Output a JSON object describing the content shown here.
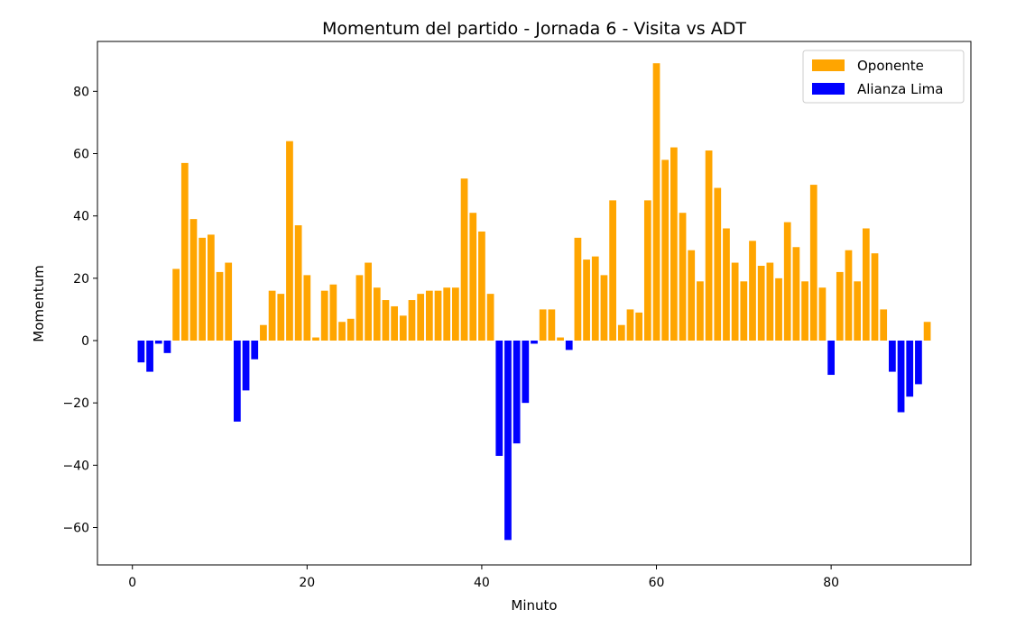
{
  "chart_data": {
    "type": "bar",
    "title": "Momentum del partido - Jornada 6 - Visita vs ADT",
    "xlabel": "Minuto",
    "ylabel": "Momentum",
    "xlim": [
      -4,
      96
    ],
    "ylim": [
      -72,
      96
    ],
    "xticks": [
      0,
      20,
      40,
      60,
      80
    ],
    "yticks": [
      -60,
      -40,
      -20,
      0,
      20,
      40,
      60,
      80
    ],
    "ytick_labels": [
      "−60",
      "−40",
      "−20",
      "0",
      "20",
      "40",
      "60",
      "80"
    ],
    "grid": false,
    "legend_position": "top-right",
    "colors": {
      "Oponente": "#FFA500",
      "Alianza Lima": "#0000FF"
    },
    "series": [
      {
        "name": "Oponente",
        "x": [
          5,
          6,
          7,
          8,
          9,
          10,
          11,
          15,
          16,
          17,
          18,
          19,
          20,
          21,
          22,
          23,
          24,
          25,
          26,
          27,
          28,
          29,
          30,
          31,
          32,
          33,
          34,
          35,
          36,
          37,
          38,
          39,
          40,
          41,
          47,
          48,
          49,
          51,
          52,
          53,
          54,
          55,
          56,
          57,
          58,
          59,
          60,
          61,
          62,
          63,
          64,
          65,
          66,
          67,
          68,
          69,
          70,
          71,
          72,
          73,
          74,
          75,
          76,
          77,
          78,
          79,
          81,
          82,
          83,
          84,
          85,
          86,
          91
        ],
        "values": [
          23,
          57,
          39,
          33,
          34,
          22,
          25,
          5,
          16,
          15,
          64,
          37,
          21,
          1,
          16,
          18,
          6,
          7,
          21,
          25,
          17,
          13,
          11,
          8,
          13,
          15,
          16,
          16,
          17,
          17,
          52,
          41,
          35,
          15,
          10,
          10,
          1,
          33,
          26,
          27,
          21,
          45,
          5,
          10,
          9,
          45,
          89,
          58,
          62,
          41,
          29,
          19,
          61,
          49,
          36,
          25,
          19,
          32,
          24,
          25,
          20,
          38,
          30,
          19,
          50,
          17,
          22,
          29,
          19,
          36,
          28,
          10,
          6
        ]
      },
      {
        "name": "Alianza Lima",
        "x": [
          1,
          2,
          3,
          4,
          12,
          13,
          14,
          42,
          43,
          44,
          45,
          46,
          50,
          80,
          87,
          88,
          89,
          90
        ],
        "values": [
          -7,
          -10,
          -1,
          -4,
          -26,
          -16,
          -6,
          -37,
          -64,
          -33,
          -20,
          -1,
          -3,
          -11,
          -10,
          -23,
          -18,
          -14
        ]
      }
    ]
  }
}
